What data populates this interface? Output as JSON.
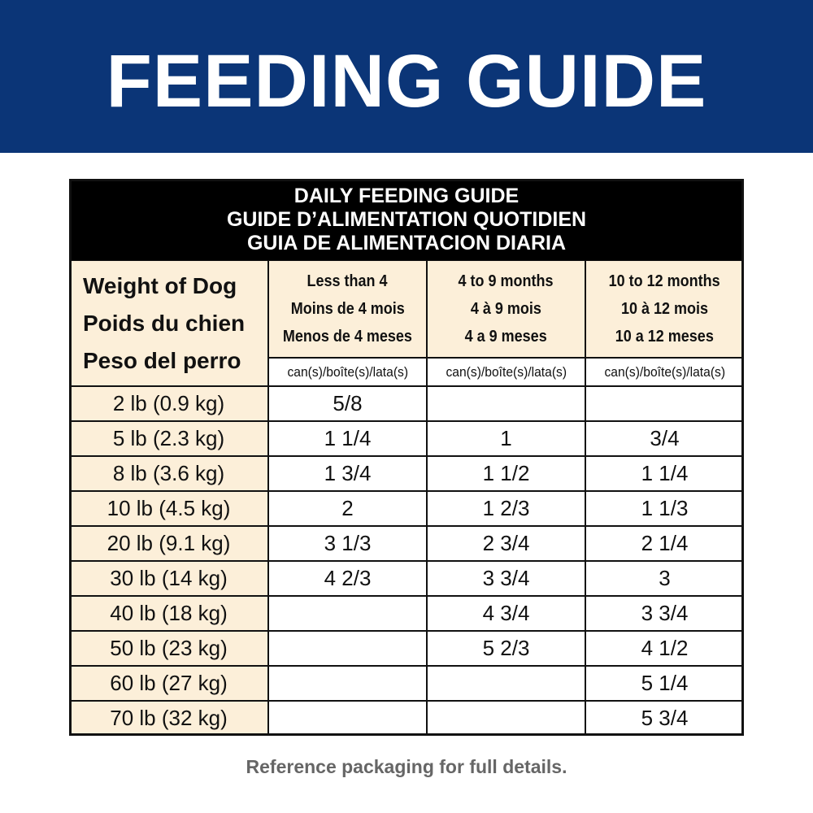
{
  "banner": {
    "title": "FEEDING GUIDE"
  },
  "table": {
    "title_lines": [
      "DAILY FEEDING GUIDE",
      "GUIDE D’ALIMENTATION QUOTIDIEN",
      "GUIA DE ALIMENTACION DIARIA"
    ],
    "row_header_lines": [
      "Weight of Dog",
      "Poids du chien",
      "Peso del perro"
    ],
    "columns": [
      {
        "lines": [
          "Less than 4",
          "Moins de 4 mois",
          "Menos de 4 meses"
        ],
        "unit": "can(s)/boîte(s)/lata(s)"
      },
      {
        "lines": [
          "4 to 9 months",
          "4 à 9 mois",
          "4 a 9 meses"
        ],
        "unit": "can(s)/boîte(s)/lata(s)"
      },
      {
        "lines": [
          "10 to 12 months",
          "10 à 12 mois",
          "10 a 12 meses"
        ],
        "unit": "can(s)/boîte(s)/lata(s)"
      }
    ],
    "rows": [
      [
        "2 lb (0.9 kg)",
        "5/8",
        null,
        null
      ],
      [
        "5 lb (2.3 kg)",
        "1 1/4",
        "1",
        "3/4"
      ],
      [
        "8 lb (3.6 kg)",
        "1 3/4",
        "1 1/2",
        "1 1/4"
      ],
      [
        "10 lb (4.5 kg)",
        "2",
        "1 2/3",
        "1 1/3"
      ],
      [
        "20 lb (9.1 kg)",
        "3 1/3",
        "2 3/4",
        "2 1/4"
      ],
      [
        "30 lb (14 kg)",
        "4 2/3",
        "3 3/4",
        "3"
      ],
      [
        "40 lb (18 kg)",
        null,
        "4 3/4",
        "3 3/4"
      ],
      [
        "50 lb (23 kg)",
        null,
        "5 2/3",
        "4 1/2"
      ],
      [
        "60 lb (27 kg)",
        null,
        null,
        "5 1/4"
      ],
      [
        "70 lb (32 kg)",
        null,
        null,
        "5 3/4"
      ]
    ]
  },
  "footer": {
    "note": "Reference packaging for full details."
  }
}
